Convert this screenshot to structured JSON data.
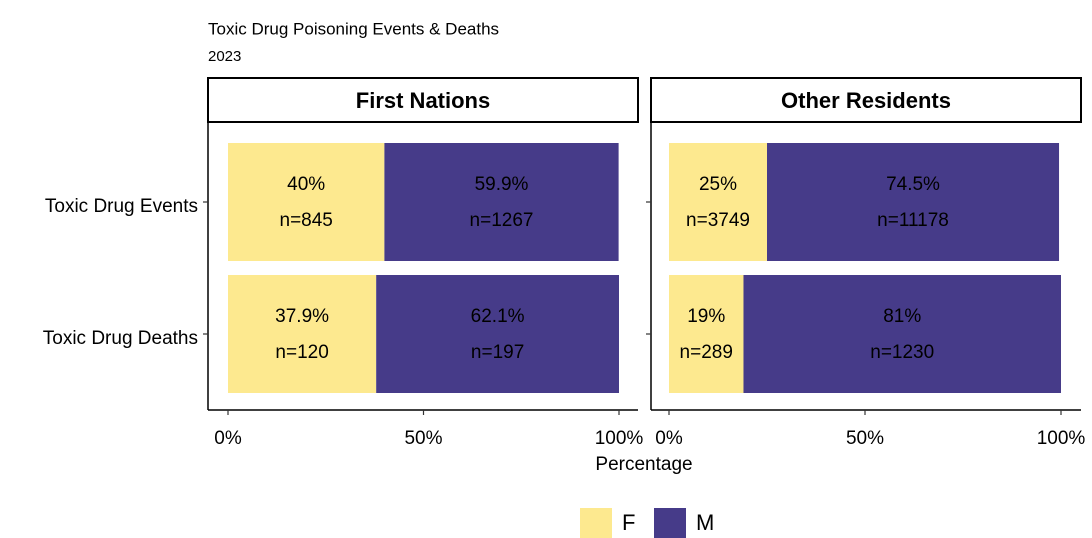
{
  "chart_data": {
    "type": "bar",
    "stacked": true,
    "orientation": "horizontal",
    "title": "Toxic Drug Poisoning Events & Deaths",
    "subtitle": "2023",
    "xlabel": "Percentage",
    "xlim": [
      0,
      100
    ],
    "xticks": [
      {
        "value": 0,
        "label": "0%"
      },
      {
        "value": 50,
        "label": "50%"
      },
      {
        "value": 100,
        "label": "100%"
      }
    ],
    "categories": [
      "Toxic Drug Events",
      "Toxic Drug Deaths"
    ],
    "legend": "bottom",
    "facets": [
      {
        "name": "First Nations",
        "series": [
          {
            "name": "F",
            "color": "#fde98f",
            "values": [
              40,
              37.9
            ],
            "value_labels": [
              "40%",
              "37.9%"
            ],
            "counts": [
              845,
              120
            ],
            "count_labels": [
              "n=845",
              "n=120"
            ]
          },
          {
            "name": "M",
            "color": "#463b89",
            "values": [
              59.9,
              62.1
            ],
            "value_labels": [
              "59.9%",
              "62.1%"
            ],
            "counts": [
              1267,
              197
            ],
            "count_labels": [
              "n=1267",
              "n=197"
            ]
          }
        ]
      },
      {
        "name": "Other Residents",
        "series": [
          {
            "name": "F",
            "color": "#fde98f",
            "values": [
              25,
              19
            ],
            "value_labels": [
              "25%",
              "19%"
            ],
            "counts": [
              3749,
              289
            ],
            "count_labels": [
              "n=3749",
              "n=289"
            ]
          },
          {
            "name": "M",
            "color": "#463b89",
            "values": [
              74.5,
              81
            ],
            "value_labels": [
              "74.5%",
              "81%"
            ],
            "counts": [
              11178,
              1230
            ],
            "count_labels": [
              "n=11178",
              "n=1230"
            ]
          }
        ]
      }
    ]
  }
}
